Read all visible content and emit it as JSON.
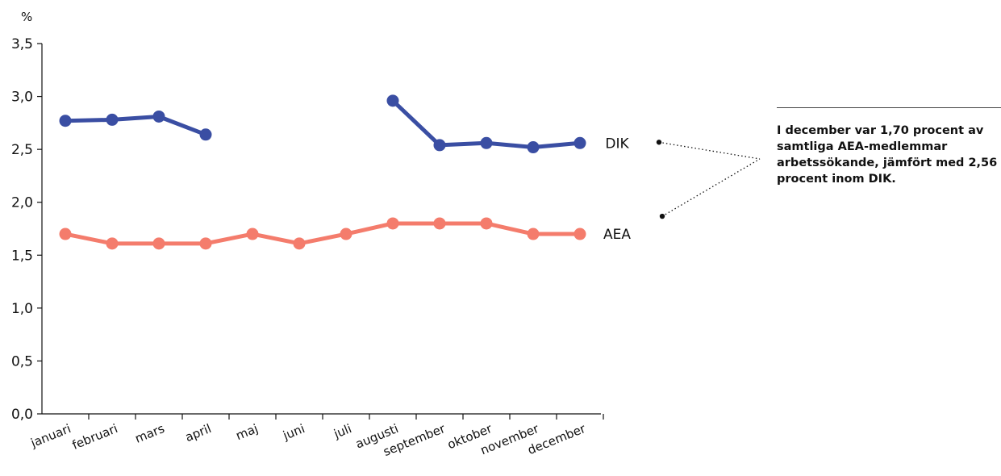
{
  "chart_data": {
    "type": "line",
    "y_unit": "%",
    "categories": [
      "januari",
      "februari",
      "mars",
      "april",
      "maj",
      "juni",
      "juli",
      "augusti",
      "september",
      "oktober",
      "november",
      "december"
    ],
    "ylim": [
      0,
      3.5
    ],
    "y_ticks": [
      "0,0",
      "0,5",
      "1,0",
      "1,5",
      "2,0",
      "2,5",
      "3,0",
      "3,5"
    ],
    "y_tick_values": [
      0,
      0.5,
      1.0,
      1.5,
      2.0,
      2.5,
      3.0,
      3.5
    ],
    "grid": false,
    "series": [
      {
        "name": "DIK",
        "color": "#3a4ea3",
        "values": [
          2.77,
          2.78,
          2.81,
          2.64,
          null,
          null,
          null,
          2.96,
          2.54,
          2.56,
          2.52,
          2.56
        ]
      },
      {
        "name": "AEA",
        "color": "#f47c6c",
        "values": [
          1.7,
          1.61,
          1.61,
          1.61,
          1.7,
          1.61,
          1.7,
          1.8,
          1.8,
          1.8,
          1.7,
          1.7
        ]
      }
    ],
    "annotation": "I december var 1,70 procent av samtliga AEA-medlemmar arbetssökande, jämfört med 2,56 procent inom DIK."
  }
}
